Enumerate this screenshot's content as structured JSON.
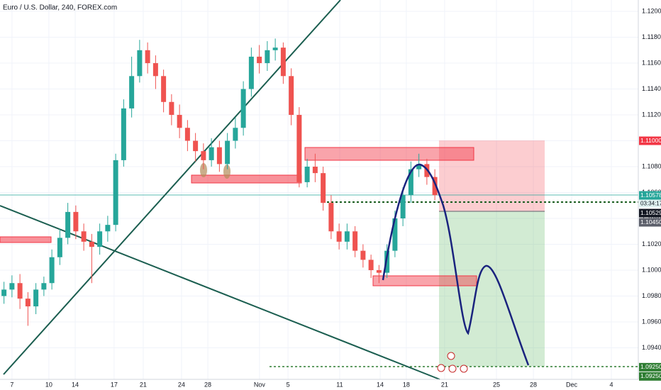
{
  "chart_data": {
    "type": "candlestick",
    "title": "Euro / U.S. Dollar, 240, FOREX.com",
    "up_color": "#26a69a",
    "down_color": "#ef5350",
    "grid": true,
    "xlim": [
      0,
      320
    ],
    "ylim": [
      1.09156,
      1.12088
    ],
    "xticks": [
      {
        "value": 6,
        "label": "7"
      },
      {
        "value": 24.5,
        "label": "10"
      },
      {
        "value": 37.7,
        "label": "14"
      },
      {
        "value": 57.2,
        "label": "17"
      },
      {
        "value": 71.8,
        "label": "21"
      },
      {
        "value": 91,
        "label": "24"
      },
      {
        "value": 104.2,
        "label": "28"
      },
      {
        "value": 130.1,
        "label": "Nov"
      },
      {
        "value": 144.4,
        "label": "5"
      },
      {
        "value": 170.3,
        "label": "11"
      },
      {
        "value": 190.6,
        "label": "14"
      },
      {
        "value": 203.7,
        "label": "18"
      },
      {
        "value": 222.9,
        "label": "21"
      },
      {
        "value": 248.9,
        "label": "25"
      },
      {
        "value": 267.4,
        "label": "28"
      },
      {
        "value": 286.6,
        "label": "Dec"
      },
      {
        "value": 306.5,
        "label": "4"
      }
    ],
    "yticks": [
      {
        "value": 1.12,
        "label": "1.12000"
      },
      {
        "value": 1.118,
        "label": "1.11800"
      },
      {
        "value": 1.116,
        "label": "1.11600"
      },
      {
        "value": 1.114,
        "label": "1.11400"
      },
      {
        "value": 1.112,
        "label": "1.11200"
      },
      {
        "value": 1.11,
        "label": "1.11000"
      },
      {
        "value": 1.108,
        "label": "1.10800"
      },
      {
        "value": 1.106,
        "label": "1.10600"
      },
      {
        "value": 1.104,
        "label": "1.10400"
      },
      {
        "value": 1.102,
        "label": "1.10200"
      },
      {
        "value": 1.1,
        "label": "1.10000"
      },
      {
        "value": 1.098,
        "label": "1.09800"
      },
      {
        "value": 1.096,
        "label": "1.09600"
      },
      {
        "value": 1.094,
        "label": "1.09400"
      }
    ],
    "x": [
      2,
      6,
      10,
      14,
      18,
      22,
      26,
      30,
      34,
      38,
      42,
      46,
      50,
      54,
      58,
      62,
      66,
      70,
      74,
      78,
      82,
      86,
      90,
      94,
      98,
      102,
      106,
      110,
      114,
      118,
      122,
      126,
      130,
      134,
      138,
      142,
      146,
      150,
      154,
      158,
      162,
      166,
      170,
      174,
      178,
      182,
      186,
      190,
      194,
      198,
      202,
      206,
      210,
      214,
      218
    ],
    "open": [
      1.098,
      1.0985,
      1.099,
      1.0978,
      1.0972,
      1.0985,
      1.099,
      1.101,
      1.1025,
      1.1045,
      1.103,
      1.1022,
      1.1018,
      1.103,
      1.1035,
      1.1085,
      1.1125,
      1.115,
      1.117,
      1.116,
      1.115,
      1.113,
      1.112,
      1.111,
      1.11,
      1.1092,
      1.1085,
      1.1095,
      1.1082,
      1.11,
      1.111,
      1.114,
      1.1165,
      1.116,
      1.117,
      1.1172,
      1.115,
      1.112,
      1.1068,
      1.108,
      1.1075,
      1.1052,
      1.103,
      1.1022,
      1.103,
      1.1015,
      1.1008,
      1.1,
      1.0998,
      1.1015,
      1.104,
      1.1058,
      1.1078,
      1.1082,
      1.1072
    ],
    "high": [
      1.0991,
      1.0996,
      1.0997,
      1.0983,
      1.099,
      1.0995,
      1.1016,
      1.1032,
      1.1052,
      1.105,
      1.1036,
      1.1028,
      1.1036,
      1.1042,
      1.109,
      1.1132,
      1.1165,
      1.1178,
      1.1176,
      1.1166,
      1.1155,
      1.1136,
      1.1128,
      1.1116,
      1.1106,
      1.1098,
      1.1102,
      1.11,
      1.1106,
      1.1118,
      1.1146,
      1.1172,
      1.1174,
      1.1177,
      1.1179,
      1.1176,
      1.1156,
      1.1126,
      1.1086,
      1.109,
      1.108,
      1.1058,
      1.1036,
      1.1036,
      1.1034,
      1.102,
      1.1012,
      1.1004,
      1.102,
      1.1046,
      1.1064,
      1.1084,
      1.109,
      1.1086,
      1.1078
    ],
    "low": [
      1.0974,
      1.0979,
      1.097,
      1.0957,
      1.0966,
      1.098,
      1.0985,
      1.1004,
      1.102,
      1.1024,
      1.1015,
      1.099,
      1.1012,
      1.1022,
      1.103,
      1.108,
      1.1118,
      1.1145,
      1.1152,
      1.114,
      1.1122,
      1.1112,
      1.1102,
      1.1092,
      1.1084,
      1.1078,
      1.108,
      1.1076,
      1.1078,
      1.1094,
      1.1104,
      1.1134,
      1.1152,
      1.1154,
      1.1162,
      1.1144,
      1.1112,
      1.1064,
      1.1064,
      1.1068,
      1.1046,
      1.1024,
      1.1016,
      1.1016,
      1.101,
      1.1002,
      1.0994,
      1.099,
      1.0994,
      1.101,
      1.1034,
      1.1052,
      1.1072,
      1.1066,
      1.1054
    ],
    "close": [
      1.0985,
      1.099,
      1.0978,
      1.0972,
      1.0985,
      1.099,
      1.101,
      1.1025,
      1.1045,
      1.103,
      1.1022,
      1.1018,
      1.103,
      1.1035,
      1.1085,
      1.1125,
      1.115,
      1.117,
      1.116,
      1.115,
      1.113,
      1.112,
      1.111,
      1.11,
      1.1092,
      1.1085,
      1.1095,
      1.1082,
      1.11,
      1.111,
      1.114,
      1.1165,
      1.116,
      1.117,
      1.1172,
      1.115,
      1.112,
      1.1068,
      1.108,
      1.1075,
      1.1052,
      1.103,
      1.1022,
      1.103,
      1.1015,
      1.1008,
      1.1,
      1.0998,
      1.1015,
      1.104,
      1.1058,
      1.1078,
      1.1082,
      1.1072,
      1.1058
    ],
    "price_labels": [
      {
        "value": 1.11,
        "label": "1.11000",
        "color": "#f23645"
      },
      {
        "value": 1.10578,
        "label": "1.10578",
        "color": "#26a69a"
      },
      {
        "value": 1.10529,
        "label": "1.10529",
        "color": "#131722"
      },
      {
        "value": 1.1045,
        "label": "1.10450",
        "color": "#5d606b"
      },
      {
        "value": 1.0925,
        "label": "1.09250",
        "color": "#2e7d32"
      },
      {
        "value": 1.0925,
        "label": "1.09250",
        "color": "#2e7d32"
      }
    ],
    "countdown": "03:34:17"
  }
}
